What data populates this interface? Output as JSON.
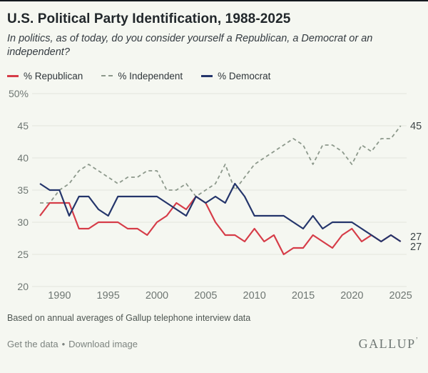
{
  "header": {
    "title": "U.S. Political Party Identification, 1988-2025",
    "subtitle": "In politics, as of today, do you consider yourself a Republican, a Democrat or an independent?"
  },
  "legend": [
    {
      "label": "% Republican",
      "color": "#d63c48",
      "style": "solid"
    },
    {
      "label": "% Independent",
      "color": "#8d998c",
      "style": "dashed"
    },
    {
      "label": "% Democrat",
      "color": "#24356b",
      "style": "solid"
    }
  ],
  "chart_data": {
    "type": "line",
    "x": [
      1988,
      1989,
      1990,
      1991,
      1992,
      1993,
      1994,
      1995,
      1996,
      1997,
      1998,
      1999,
      2000,
      2001,
      2002,
      2003,
      2004,
      2005,
      2006,
      2007,
      2008,
      2009,
      2010,
      2011,
      2012,
      2013,
      2014,
      2015,
      2016,
      2017,
      2018,
      2019,
      2020,
      2021,
      2022,
      2023,
      2024,
      2025
    ],
    "series": [
      {
        "name": "% Republican",
        "color": "#d63c48",
        "dash": false,
        "values": [
          31,
          33,
          33,
          33,
          29,
          29,
          30,
          30,
          30,
          29,
          29,
          28,
          30,
          31,
          33,
          32,
          34,
          33,
          30,
          28,
          28,
          27,
          29,
          27,
          28,
          25,
          26,
          26,
          28,
          27,
          26,
          28,
          29,
          27,
          28,
          27,
          28,
          27
        ],
        "end_label": "27"
      },
      {
        "name": "% Independent",
        "color": "#8d998c",
        "dash": true,
        "values": [
          33,
          33,
          35,
          36,
          38,
          39,
          38,
          37,
          36,
          37,
          37,
          38,
          38,
          35,
          35,
          36,
          34,
          35,
          36,
          39,
          35,
          37,
          39,
          40,
          41,
          42,
          43,
          42,
          39,
          42,
          42,
          41,
          39,
          42,
          41,
          43,
          43,
          45
        ],
        "end_label": "45"
      },
      {
        "name": "% Democrat",
        "color": "#24356b",
        "dash": false,
        "values": [
          36,
          35,
          35,
          31,
          34,
          34,
          32,
          31,
          34,
          34,
          34,
          34,
          34,
          33,
          32,
          31,
          34,
          33,
          34,
          33,
          36,
          34,
          31,
          31,
          31,
          31,
          30,
          29,
          31,
          29,
          30,
          30,
          30,
          29,
          28,
          27,
          28,
          27
        ],
        "end_label": "27"
      }
    ],
    "ylim": [
      20,
      50
    ],
    "yticks": [
      20,
      25,
      30,
      35,
      40,
      45,
      50
    ],
    "ytick_labels": [
      "20",
      "25",
      "30",
      "35",
      "40",
      "45",
      "50%"
    ],
    "xticks": [
      1990,
      1995,
      2000,
      2005,
      2010,
      2015,
      2020,
      2025
    ],
    "grid": true,
    "legend_position": "top",
    "colors": {
      "grid": "#e2e6dd",
      "tick_label": "#6f7773",
      "end_label": "#3e4548"
    }
  },
  "footer": {
    "source_note": "Based on annual averages of Gallup telephone interview data",
    "links": [
      "Get the data",
      "Download image"
    ],
    "separator": "•",
    "logo": "GALLUP",
    "logo_mark": "’"
  }
}
